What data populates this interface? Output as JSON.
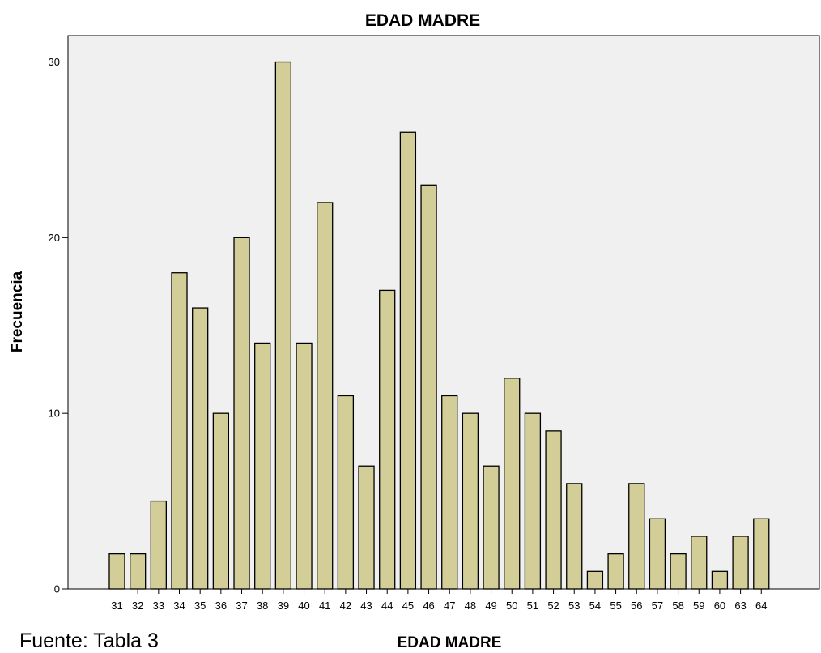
{
  "chart_data": {
    "type": "bar",
    "title": "EDAD MADRE",
    "xlabel": "EDAD MADRE",
    "ylabel": "Frecuencia",
    "categories": [
      "31",
      "32",
      "33",
      "34",
      "35",
      "36",
      "37",
      "38",
      "39",
      "40",
      "41",
      "42",
      "43",
      "44",
      "45",
      "46",
      "47",
      "48",
      "49",
      "50",
      "51",
      "52",
      "53",
      "54",
      "55",
      "56",
      "57",
      "58",
      "59",
      "60",
      "63",
      "64"
    ],
    "values": [
      2,
      2,
      5,
      18,
      16,
      10,
      20,
      14,
      30,
      14,
      22,
      11,
      7,
      17,
      26,
      23,
      11,
      10,
      7,
      12,
      10,
      9,
      6,
      1,
      2,
      6,
      4,
      2,
      3,
      1,
      3,
      4
    ],
    "ylim": [
      0,
      31.5
    ],
    "yticks": [
      0,
      10,
      20,
      30
    ],
    "grid": false,
    "legend": "none",
    "plot_background": "#F0F0F0",
    "bar_color": "#D3CE97",
    "bar_edge_color": "#000000"
  },
  "footer": {
    "source": "Fuente: Tabla 3"
  }
}
